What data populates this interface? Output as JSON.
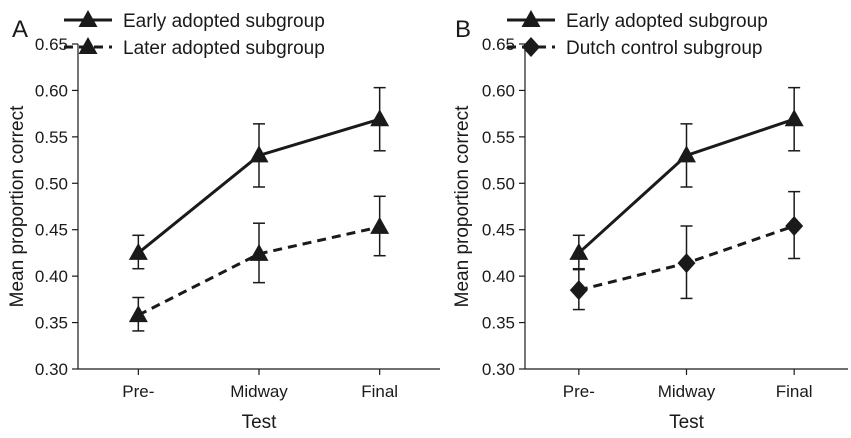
{
  "chart_data": [
    {
      "panel_label": "A",
      "type": "line",
      "categories": [
        "Pre-",
        "Midway",
        "Final"
      ],
      "xlabel": "Test",
      "ylabel": "Mean proportion correct",
      "ylim": [
        0.3,
        0.65
      ],
      "yticks": [
        "0.30",
        "0.35",
        "0.40",
        "0.45",
        "0.50",
        "0.55",
        "0.60",
        "0.65"
      ],
      "grid": false,
      "legend": "top",
      "series": [
        {
          "name": "Early adopted subgroup",
          "line": "solid",
          "marker": "triangle",
          "values": [
            0.425,
            0.53,
            0.569
          ],
          "err_low": [
            0.408,
            0.496,
            0.535
          ],
          "err_high": [
            0.444,
            0.564,
            0.603
          ]
        },
        {
          "name": "Later adopted subgroup",
          "line": "dashed",
          "marker": "triangle",
          "values": [
            0.358,
            0.424,
            0.453
          ],
          "err_low": [
            0.341,
            0.393,
            0.422
          ],
          "err_high": [
            0.377,
            0.457,
            0.486
          ]
        }
      ]
    },
    {
      "panel_label": "B",
      "type": "line",
      "categories": [
        "Pre-",
        "Midway",
        "Final"
      ],
      "xlabel": "Test",
      "ylabel": "Mean proportion correct",
      "ylim": [
        0.3,
        0.65
      ],
      "yticks": [
        "0.30",
        "0.35",
        "0.40",
        "0.45",
        "0.50",
        "0.55",
        "0.60",
        "0.65"
      ],
      "grid": false,
      "legend": "top",
      "series": [
        {
          "name": "Early adopted subgroup",
          "line": "solid",
          "marker": "triangle",
          "values": [
            0.425,
            0.53,
            0.569
          ],
          "err_low": [
            0.408,
            0.496,
            0.535
          ],
          "err_high": [
            0.444,
            0.564,
            0.603
          ]
        },
        {
          "name": "Dutch control subgroup",
          "line": "dashed",
          "marker": "diamond",
          "values": [
            0.385,
            0.414,
            0.454
          ],
          "err_low": [
            0.364,
            0.376,
            0.419
          ],
          "err_high": [
            0.407,
            0.454,
            0.491
          ]
        }
      ]
    }
  ]
}
